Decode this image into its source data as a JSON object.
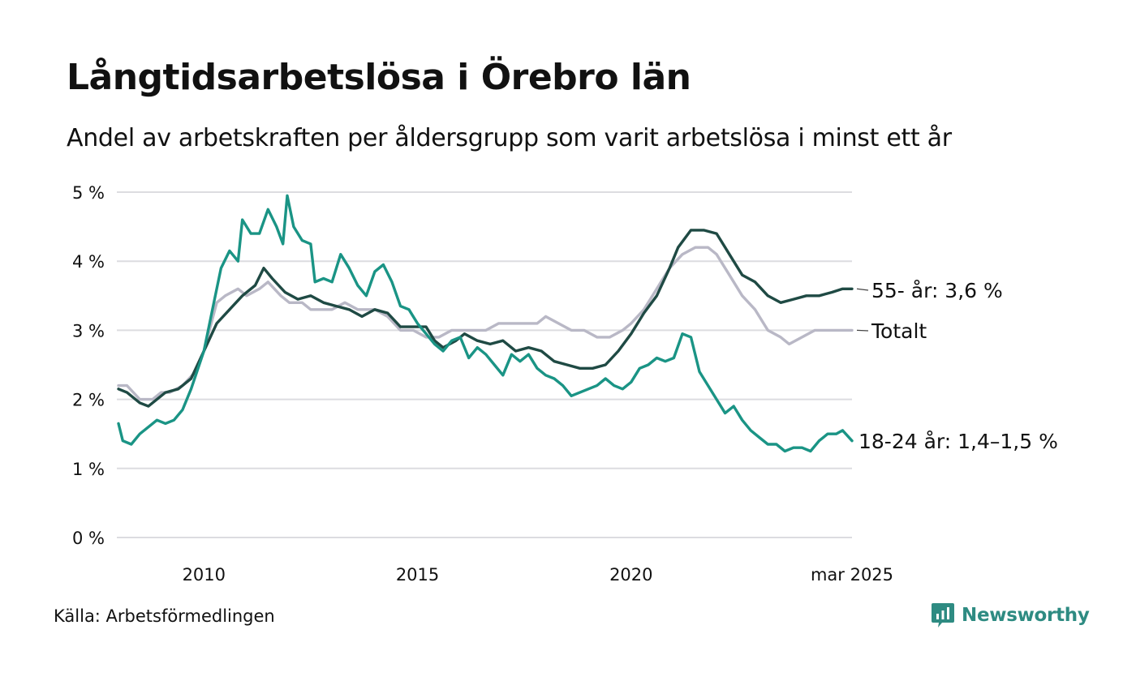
{
  "title": "Långtidsarbetslösa i Örebro län",
  "subtitle": "Andel av arbetskraften per åldersgrupp som varit arbetslösa i minst ett år",
  "source": "Källa: Arbetsförmedlingen",
  "brand": "Newsworthy",
  "colors": {
    "age_55_plus": "#1f4a44",
    "total": "#b9b8c6",
    "age_18_24": "#1a9485",
    "grid": "#dcdce0",
    "brand": "#2e8b82"
  },
  "chart_data": {
    "type": "line",
    "title": "Långtidsarbetslösa i Örebro län",
    "subtitle": "Andel av arbetskraften per åldersgrupp som varit arbetslösa i minst ett år",
    "xlabel": "",
    "ylabel": "",
    "x_range": [
      2008.0,
      2025.17
    ],
    "ylim": [
      0,
      5
    ],
    "y_ticks": [
      {
        "value": 0,
        "label": "0 %"
      },
      {
        "value": 1,
        "label": "1 %"
      },
      {
        "value": 2,
        "label": "2 %"
      },
      {
        "value": 3,
        "label": "3 %"
      },
      {
        "value": 4,
        "label": "4 %"
      },
      {
        "value": 5,
        "label": "5 %"
      }
    ],
    "x_ticks": [
      {
        "value": 2010,
        "label": "2010"
      },
      {
        "value": 2015,
        "label": "2015"
      },
      {
        "value": 2020,
        "label": "2020"
      },
      {
        "value": 2025.17,
        "label": "mar 2025"
      }
    ],
    "grid": true,
    "legend": "direct labels at line ends (right)",
    "series": [
      {
        "key": "total",
        "end_label": "Totalt",
        "points": [
          [
            2008.0,
            2.2
          ],
          [
            2008.2,
            2.2
          ],
          [
            2008.5,
            2.0
          ],
          [
            2008.8,
            2.0
          ],
          [
            2009.0,
            2.1
          ],
          [
            2009.2,
            2.1
          ],
          [
            2009.5,
            2.2
          ],
          [
            2009.8,
            2.4
          ],
          [
            2010.0,
            2.7
          ],
          [
            2010.3,
            3.4
          ],
          [
            2010.5,
            3.5
          ],
          [
            2010.8,
            3.6
          ],
          [
            2011.0,
            3.5
          ],
          [
            2011.3,
            3.6
          ],
          [
            2011.5,
            3.7
          ],
          [
            2011.8,
            3.5
          ],
          [
            2012.0,
            3.4
          ],
          [
            2012.3,
            3.4
          ],
          [
            2012.5,
            3.3
          ],
          [
            2012.8,
            3.3
          ],
          [
            2013.0,
            3.3
          ],
          [
            2013.3,
            3.4
          ],
          [
            2013.6,
            3.3
          ],
          [
            2013.8,
            3.3
          ],
          [
            2014.0,
            3.3
          ],
          [
            2014.3,
            3.2
          ],
          [
            2014.6,
            3.0
          ],
          [
            2014.9,
            3.0
          ],
          [
            2015.2,
            2.9
          ],
          [
            2015.5,
            2.9
          ],
          [
            2015.8,
            3.0
          ],
          [
            2016.0,
            3.0
          ],
          [
            2016.3,
            3.0
          ],
          [
            2016.6,
            3.0
          ],
          [
            2016.9,
            3.1
          ],
          [
            2017.2,
            3.1
          ],
          [
            2017.5,
            3.1
          ],
          [
            2017.8,
            3.1
          ],
          [
            2018.0,
            3.2
          ],
          [
            2018.3,
            3.1
          ],
          [
            2018.6,
            3.0
          ],
          [
            2018.9,
            3.0
          ],
          [
            2019.2,
            2.9
          ],
          [
            2019.5,
            2.9
          ],
          [
            2019.8,
            3.0
          ],
          [
            2020.0,
            3.1
          ],
          [
            2020.3,
            3.3
          ],
          [
            2020.6,
            3.6
          ],
          [
            2020.9,
            3.9
          ],
          [
            2021.2,
            4.1
          ],
          [
            2021.5,
            4.2
          ],
          [
            2021.8,
            4.2
          ],
          [
            2022.0,
            4.1
          ],
          [
            2022.3,
            3.8
          ],
          [
            2022.6,
            3.5
          ],
          [
            2022.9,
            3.3
          ],
          [
            2023.2,
            3.0
          ],
          [
            2023.5,
            2.9
          ],
          [
            2023.7,
            2.8
          ],
          [
            2024.0,
            2.9
          ],
          [
            2024.3,
            3.0
          ],
          [
            2024.6,
            3.0
          ],
          [
            2024.9,
            3.0
          ],
          [
            2025.17,
            3.0
          ]
        ]
      },
      {
        "key": "age_55_plus",
        "end_label": "55- år: 3,6 %",
        "points": [
          [
            2008.0,
            2.15
          ],
          [
            2008.2,
            2.1
          ],
          [
            2008.5,
            1.95
          ],
          [
            2008.7,
            1.9
          ],
          [
            2008.9,
            2.0
          ],
          [
            2009.1,
            2.1
          ],
          [
            2009.4,
            2.15
          ],
          [
            2009.7,
            2.3
          ],
          [
            2010.0,
            2.7
          ],
          [
            2010.3,
            3.1
          ],
          [
            2010.6,
            3.3
          ],
          [
            2010.9,
            3.5
          ],
          [
            2011.2,
            3.65
          ],
          [
            2011.4,
            3.9
          ],
          [
            2011.6,
            3.75
          ],
          [
            2011.9,
            3.55
          ],
          [
            2012.2,
            3.45
          ],
          [
            2012.5,
            3.5
          ],
          [
            2012.8,
            3.4
          ],
          [
            2013.1,
            3.35
          ],
          [
            2013.4,
            3.3
          ],
          [
            2013.7,
            3.2
          ],
          [
            2014.0,
            3.3
          ],
          [
            2014.3,
            3.25
          ],
          [
            2014.6,
            3.05
          ],
          [
            2014.9,
            3.05
          ],
          [
            2015.2,
            3.05
          ],
          [
            2015.4,
            2.85
          ],
          [
            2015.6,
            2.75
          ],
          [
            2015.9,
            2.85
          ],
          [
            2016.1,
            2.95
          ],
          [
            2016.4,
            2.85
          ],
          [
            2016.7,
            2.8
          ],
          [
            2017.0,
            2.85
          ],
          [
            2017.3,
            2.7
          ],
          [
            2017.6,
            2.75
          ],
          [
            2017.9,
            2.7
          ],
          [
            2018.2,
            2.55
          ],
          [
            2018.5,
            2.5
          ],
          [
            2018.8,
            2.45
          ],
          [
            2019.1,
            2.45
          ],
          [
            2019.4,
            2.5
          ],
          [
            2019.7,
            2.7
          ],
          [
            2020.0,
            2.95
          ],
          [
            2020.3,
            3.25
          ],
          [
            2020.6,
            3.5
          ],
          [
            2020.9,
            3.9
          ],
          [
            2021.1,
            4.2
          ],
          [
            2021.4,
            4.45
          ],
          [
            2021.7,
            4.45
          ],
          [
            2022.0,
            4.4
          ],
          [
            2022.3,
            4.1
          ],
          [
            2022.6,
            3.8
          ],
          [
            2022.9,
            3.7
          ],
          [
            2023.2,
            3.5
          ],
          [
            2023.5,
            3.4
          ],
          [
            2023.8,
            3.45
          ],
          [
            2024.1,
            3.5
          ],
          [
            2024.4,
            3.5
          ],
          [
            2024.7,
            3.55
          ],
          [
            2024.95,
            3.6
          ],
          [
            2025.17,
            3.6
          ]
        ]
      },
      {
        "key": "age_18_24",
        "end_label": "18-24 år: 1,4–1,5 %",
        "points": [
          [
            2008.0,
            1.65
          ],
          [
            2008.1,
            1.4
          ],
          [
            2008.3,
            1.35
          ],
          [
            2008.5,
            1.5
          ],
          [
            2008.7,
            1.6
          ],
          [
            2008.9,
            1.7
          ],
          [
            2009.1,
            1.65
          ],
          [
            2009.3,
            1.7
          ],
          [
            2009.5,
            1.85
          ],
          [
            2009.7,
            2.15
          ],
          [
            2010.0,
            2.7
          ],
          [
            2010.2,
            3.3
          ],
          [
            2010.4,
            3.9
          ],
          [
            2010.6,
            4.15
          ],
          [
            2010.8,
            4.0
          ],
          [
            2010.9,
            4.6
          ],
          [
            2011.1,
            4.4
          ],
          [
            2011.3,
            4.4
          ],
          [
            2011.5,
            4.75
          ],
          [
            2011.7,
            4.5
          ],
          [
            2011.85,
            4.25
          ],
          [
            2011.95,
            4.95
          ],
          [
            2012.1,
            4.5
          ],
          [
            2012.3,
            4.3
          ],
          [
            2012.5,
            4.25
          ],
          [
            2012.6,
            3.7
          ],
          [
            2012.8,
            3.75
          ],
          [
            2013.0,
            3.7
          ],
          [
            2013.2,
            4.1
          ],
          [
            2013.4,
            3.9
          ],
          [
            2013.6,
            3.65
          ],
          [
            2013.8,
            3.5
          ],
          [
            2014.0,
            3.85
          ],
          [
            2014.2,
            3.95
          ],
          [
            2014.4,
            3.7
          ],
          [
            2014.6,
            3.35
          ],
          [
            2014.8,
            3.3
          ],
          [
            2015.0,
            3.1
          ],
          [
            2015.2,
            2.95
          ],
          [
            2015.4,
            2.8
          ],
          [
            2015.6,
            2.7
          ],
          [
            2015.8,
            2.85
          ],
          [
            2016.0,
            2.9
          ],
          [
            2016.2,
            2.6
          ],
          [
            2016.4,
            2.75
          ],
          [
            2016.6,
            2.65
          ],
          [
            2016.8,
            2.5
          ],
          [
            2017.0,
            2.35
          ],
          [
            2017.2,
            2.65
          ],
          [
            2017.4,
            2.55
          ],
          [
            2017.6,
            2.65
          ],
          [
            2017.8,
            2.45
          ],
          [
            2018.0,
            2.35
          ],
          [
            2018.2,
            2.3
          ],
          [
            2018.4,
            2.2
          ],
          [
            2018.6,
            2.05
          ],
          [
            2018.8,
            2.1
          ],
          [
            2019.0,
            2.15
          ],
          [
            2019.2,
            2.2
          ],
          [
            2019.4,
            2.3
          ],
          [
            2019.6,
            2.2
          ],
          [
            2019.8,
            2.15
          ],
          [
            2020.0,
            2.25
          ],
          [
            2020.2,
            2.45
          ],
          [
            2020.4,
            2.5
          ],
          [
            2020.6,
            2.6
          ],
          [
            2020.8,
            2.55
          ],
          [
            2021.0,
            2.6
          ],
          [
            2021.2,
            2.95
          ],
          [
            2021.4,
            2.9
          ],
          [
            2021.6,
            2.4
          ],
          [
            2021.8,
            2.2
          ],
          [
            2022.0,
            2.0
          ],
          [
            2022.2,
            1.8
          ],
          [
            2022.4,
            1.9
          ],
          [
            2022.6,
            1.7
          ],
          [
            2022.8,
            1.55
          ],
          [
            2023.0,
            1.45
          ],
          [
            2023.2,
            1.35
          ],
          [
            2023.4,
            1.35
          ],
          [
            2023.6,
            1.25
          ],
          [
            2023.8,
            1.3
          ],
          [
            2024.0,
            1.3
          ],
          [
            2024.2,
            1.25
          ],
          [
            2024.4,
            1.4
          ],
          [
            2024.6,
            1.5
          ],
          [
            2024.8,
            1.5
          ],
          [
            2024.95,
            1.55
          ],
          [
            2025.17,
            1.4
          ]
        ]
      }
    ]
  }
}
